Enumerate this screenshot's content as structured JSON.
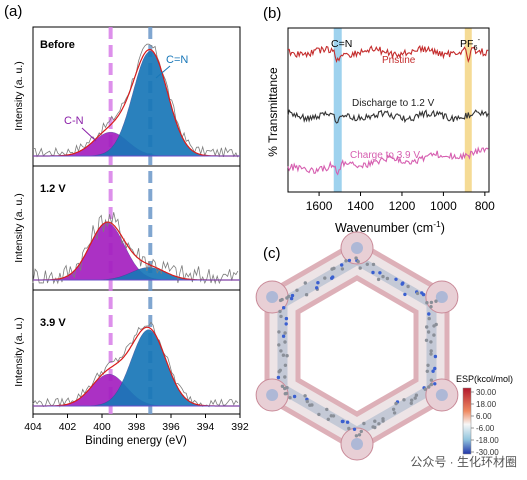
{
  "panel_labels": {
    "a": "(a)",
    "b": "(b)",
    "c": "(c)"
  },
  "watermark": "公众号 · 生化环材圈",
  "colors": {
    "cn_fill": "#a420c0",
    "cneq_fill": "#1877b8",
    "envelope": "#d81c1c",
    "raw": "#7d7d7d",
    "cn_line": "#d87de8",
    "cneq_line": "#6a97c8",
    "pristine": "#c42c2c",
    "discharge": "#333333",
    "charge": "#d65fb0",
    "cn_band": "#7ec3e8",
    "pf6_band": "#f2d27a"
  },
  "chart_data": [
    {
      "type": "line",
      "panel": "(a)",
      "xlabel": "Binding energy (eV)",
      "ylabel": "Intensity (a. u.)",
      "xlim": [
        404,
        392
      ],
      "ticks": [
        404,
        402,
        400,
        398,
        396,
        394,
        392
      ],
      "reference_lines": [
        {
          "x": 399.5,
          "label": "C-N"
        },
        {
          "x": 397.2,
          "label": "C=N"
        }
      ],
      "subpanels": [
        {
          "label": "Before",
          "peaks": [
            {
              "name": "C-N",
              "center": 399.5,
              "height": 0.2
            },
            {
              "name": "C=N",
              "center": 397.2,
              "height": 0.88
            }
          ]
        },
        {
          "label": "1.2 V",
          "peaks": [
            {
              "name": "C-N",
              "center": 399.7,
              "height": 0.55
            },
            {
              "name": "C=N",
              "center": 397.3,
              "height": 0.12
            }
          ]
        },
        {
          "label": "3.9 V",
          "peaks": [
            {
              "name": "C-N",
              "center": 399.6,
              "height": 0.3
            },
            {
              "name": "C=N",
              "center": 397.3,
              "height": 0.72
            }
          ]
        }
      ],
      "annotations": [
        "C=N",
        "C-N"
      ]
    },
    {
      "type": "line",
      "panel": "(b)",
      "xlabel": "Wavenumber (cm",
      "xlabel_sup": "-1",
      "xlabel_end": ")",
      "ylabel": "% Transmittance",
      "xlim": [
        1750,
        780
      ],
      "ticks": [
        1600,
        1400,
        1200,
        1000,
        800
      ],
      "bands": [
        {
          "x": 1510,
          "label": "C=N"
        },
        {
          "x": 880,
          "label": "PF",
          "sub": "6",
          "sup": "-"
        }
      ],
      "series": [
        {
          "name": "Pristine"
        },
        {
          "name": "Discharge to 1.2 V"
        },
        {
          "name": "Charge to  3.9 V"
        }
      ]
    }
  ],
  "esp_colorbar": {
    "title": "ESP(kcol/mol)",
    "ticks": [
      "30.00",
      "18.00",
      "6.00",
      "-6.00",
      "-18.00",
      "-30.00"
    ]
  }
}
